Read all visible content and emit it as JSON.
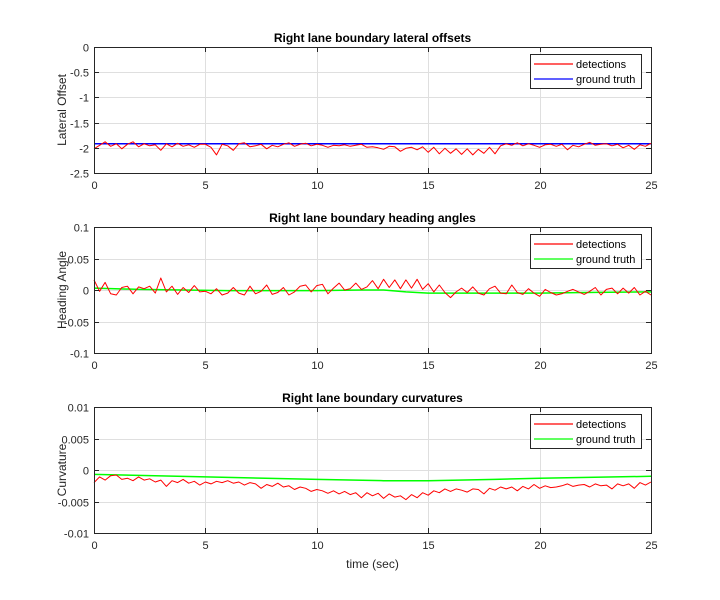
{
  "chart_data": [
    {
      "type": "line",
      "title": "Right lane boundary lateral offsets",
      "xlabel": "",
      "ylabel": "Lateral Offset",
      "xlim": [
        0,
        25
      ],
      "ylim": [
        -2.5,
        0
      ],
      "xticks": [
        0,
        5,
        10,
        15,
        20,
        25
      ],
      "xtick_labels": [
        "0",
        "5",
        "10",
        "15",
        "20",
        "25"
      ],
      "yticks": [
        0,
        -0.5,
        -1,
        -1.5,
        -2,
        -2.5
      ],
      "ytick_labels": [
        "0",
        "-0.5",
        "-1",
        "-1.5",
        "-2",
        "-2.5"
      ],
      "grid": true,
      "legend": {
        "placement": "top-right",
        "entries": [
          "detections",
          "ground truth"
        ]
      },
      "x_step": 0.25,
      "series": [
        {
          "name": "detections",
          "color": "#ff0000",
          "values": [
            -2.02,
            -1.95,
            -1.88,
            -1.97,
            -1.92,
            -2.02,
            -1.93,
            -1.88,
            -1.98,
            -1.92,
            -1.96,
            -1.94,
            -2.05,
            -1.92,
            -1.98,
            -1.91,
            -1.97,
            -1.94,
            -1.99,
            -1.93,
            -1.93,
            -1.99,
            -2.14,
            -1.93,
            -1.96,
            -2.05,
            -1.92,
            -1.9,
            -1.98,
            -1.96,
            -1.93,
            -2.02,
            -1.95,
            -1.98,
            -1.93,
            -1.9,
            -1.97,
            -1.93,
            -1.91,
            -1.96,
            -1.93,
            -1.95,
            -1.99,
            -1.95,
            -1.96,
            -1.94,
            -1.97,
            -1.95,
            -1.93,
            -1.99,
            -1.98,
            -2.0,
            -2.03,
            -1.97,
            -1.98,
            -2.07,
            -2.01,
            -1.99,
            -2.04,
            -1.98,
            -2.09,
            -1.99,
            -2.12,
            -2.01,
            -2.11,
            -2.02,
            -2.13,
            -2.02,
            -2.14,
            -2.03,
            -2.11,
            -1.99,
            -2.12,
            -1.96,
            -1.92,
            -1.95,
            -1.9,
            -1.96,
            -1.92,
            -1.95,
            -1.99,
            -1.94,
            -1.93,
            -1.97,
            -1.93,
            -2.04,
            -1.95,
            -1.98,
            -1.93,
            -1.89,
            -1.95,
            -1.93,
            -1.92,
            -1.96,
            -1.93,
            -2.0,
            -1.95,
            -2.03,
            -1.94,
            -1.97,
            -1.91
          ]
        },
        {
          "name": "ground truth",
          "color": "#0000ff",
          "x": [
            0,
            25
          ],
          "values": [
            -1.92,
            -1.92
          ]
        }
      ]
    },
    {
      "type": "line",
      "title": "Right lane boundary heading angles",
      "xlabel": "",
      "ylabel": "Heading Angle",
      "xlim": [
        0,
        25
      ],
      "ylim": [
        -0.1,
        0.1
      ],
      "xticks": [
        0,
        5,
        10,
        15,
        20,
        25
      ],
      "xtick_labels": [
        "0",
        "5",
        "10",
        "15",
        "20",
        "25"
      ],
      "yticks": [
        0.1,
        0.05,
        0,
        -0.05,
        -0.1
      ],
      "ytick_labels": [
        "0.1",
        "0.05",
        "0",
        "-0.05",
        "-0.1"
      ],
      "grid": true,
      "legend": {
        "placement": "top-right",
        "entries": [
          "detections",
          "ground truth"
        ]
      },
      "x_step": 0.25,
      "series": [
        {
          "name": "detections",
          "color": "#ff0000",
          "values": [
            0.016,
            -0.002,
            0.012,
            -0.006,
            -0.008,
            0.004,
            0.006,
            -0.006,
            0.005,
            0.002,
            0.006,
            -0.005,
            0.019,
            -0.003,
            0.006,
            -0.007,
            0.004,
            -0.004,
            0.007,
            -0.003,
            -0.002,
            -0.006,
            0.002,
            -0.008,
            -0.005,
            0.004,
            -0.005,
            -0.008,
            0.006,
            -0.006,
            -0.002,
            0.008,
            -0.007,
            -0.004,
            0.004,
            -0.008,
            -0.003,
            0.006,
            0.008,
            -0.003,
            0.007,
            0.009,
            -0.006,
            0.003,
            0.011,
            0.0,
            0.002,
            0.011,
            0.001,
            0.005,
            0.015,
            0.002,
            0.017,
            0.004,
            0.016,
            0.002,
            0.016,
            0.003,
            0.017,
            0.001,
            0.01,
            -0.003,
            0.008,
            -0.004,
            -0.012,
            -0.003,
            0.003,
            -0.004,
            0.005,
            -0.005,
            -0.008,
            0.002,
            0.006,
            -0.005,
            -0.006,
            0.008,
            -0.004,
            -0.007,
            0.002,
            -0.005,
            -0.01,
            0.001,
            -0.004,
            -0.008,
            -0.006,
            -0.002,
            0.001,
            -0.003,
            -0.007,
            -0.002,
            0.004,
            -0.008,
            0.001,
            0.003,
            -0.006,
            0.003,
            -0.005,
            0.004,
            -0.008,
            -0.002,
            -0.008
          ]
        },
        {
          "name": "ground truth",
          "color": "#00ff00",
          "x": [
            0,
            2,
            4,
            6,
            8,
            10,
            12,
            13,
            14,
            15,
            17,
            20,
            22,
            25
          ],
          "values": [
            0.003,
            0.001,
            0.0,
            -0.001,
            -0.001,
            -0.001,
            0.0,
            0.0,
            -0.003,
            -0.005,
            -0.005,
            -0.005,
            -0.004,
            -0.003
          ]
        }
      ]
    },
    {
      "type": "line",
      "title": "Right lane boundary curvatures",
      "xlabel": "time (sec)",
      "ylabel": "Curvature",
      "xlim": [
        0,
        25
      ],
      "ylim": [
        -0.01,
        0.01
      ],
      "xticks": [
        0,
        5,
        10,
        15,
        20,
        25
      ],
      "xtick_labels": [
        "0",
        "5",
        "10",
        "15",
        "20",
        "25"
      ],
      "yticks": [
        0.01,
        0.005,
        0,
        -0.005,
        -0.01
      ],
      "ytick_labels": [
        "0.01",
        "0.005",
        "0",
        "-0.005",
        "-0.01"
      ],
      "grid": true,
      "legend": {
        "placement": "top-right",
        "entries": [
          "detections",
          "ground truth"
        ]
      },
      "x_step": 0.25,
      "series": [
        {
          "name": "detections",
          "color": "#ff0000",
          "values": [
            -0.002,
            -0.0011,
            -0.0016,
            -0.0009,
            -0.0008,
            -0.0015,
            -0.0013,
            -0.0017,
            -0.0011,
            -0.0016,
            -0.0014,
            -0.0019,
            -0.0016,
            -0.0026,
            -0.0017,
            -0.002,
            -0.0015,
            -0.0021,
            -0.0018,
            -0.0024,
            -0.0019,
            -0.0022,
            -0.0018,
            -0.002,
            -0.0017,
            -0.0021,
            -0.0019,
            -0.0024,
            -0.002,
            -0.0022,
            -0.0029,
            -0.0023,
            -0.0026,
            -0.0021,
            -0.0027,
            -0.0025,
            -0.0031,
            -0.0027,
            -0.0029,
            -0.0034,
            -0.0031,
            -0.0033,
            -0.0037,
            -0.0033,
            -0.0038,
            -0.0034,
            -0.0039,
            -0.0036,
            -0.0044,
            -0.0036,
            -0.0041,
            -0.0037,
            -0.0045,
            -0.0038,
            -0.0043,
            -0.0041,
            -0.0047,
            -0.0039,
            -0.0044,
            -0.0036,
            -0.004,
            -0.0033,
            -0.0036,
            -0.003,
            -0.0034,
            -0.003,
            -0.0032,
            -0.0035,
            -0.003,
            -0.0031,
            -0.0038,
            -0.0029,
            -0.0032,
            -0.0027,
            -0.003,
            -0.0027,
            -0.0033,
            -0.0026,
            -0.003,
            -0.0023,
            -0.0029,
            -0.0025,
            -0.0028,
            -0.0027,
            -0.0025,
            -0.0022,
            -0.0026,
            -0.0024,
            -0.0023,
            -0.0027,
            -0.0022,
            -0.0025,
            -0.0024,
            -0.003,
            -0.0022,
            -0.0025,
            -0.0022,
            -0.0029,
            -0.002,
            -0.0024,
            -0.0019
          ]
        },
        {
          "name": "ground truth",
          "color": "#00ff00",
          "x": [
            0,
            5,
            10,
            13,
            15,
            18,
            20,
            25
          ],
          "values": [
            -0.0007,
            -0.0011,
            -0.0015,
            -0.0017,
            -0.0017,
            -0.0015,
            -0.0013,
            -0.001
          ]
        }
      ]
    }
  ]
}
